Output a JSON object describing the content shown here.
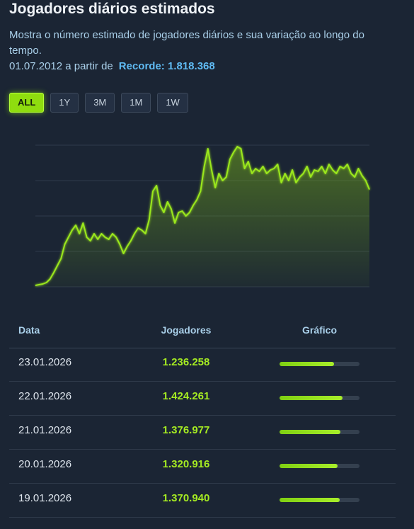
{
  "header": {
    "title": "Jogadores diários estimados",
    "description": "Mostra o número estimado de jogadores diários e sua variação ao longo do tempo.",
    "since_text": "01.07.2012 a partir de",
    "record_label": "Recorde:",
    "record_value": 1818368,
    "record_value_label": "1.818.368"
  },
  "range_buttons": [
    "ALL",
    "1Y",
    "3M",
    "1M",
    "1W"
  ],
  "active_button": 0,
  "chart_data": {
    "type": "line",
    "color": "#9be81e",
    "ylim": [
      0,
      1800000
    ],
    "yticks": [
      0,
      450000,
      900000,
      1350000,
      1800000
    ],
    "grid": true,
    "values": [
      18000,
      27000,
      36000,
      54000,
      99000,
      180000,
      270000,
      360000,
      540000,
      630000,
      720000,
      783000,
      675000,
      810000,
      630000,
      585000,
      675000,
      603000,
      675000,
      630000,
      603000,
      675000,
      630000,
      540000,
      423000,
      513000,
      585000,
      675000,
      747000,
      720000,
      675000,
      855000,
      1215000,
      1287000,
      1035000,
      945000,
      1080000,
      990000,
      810000,
      945000,
      963000,
      900000,
      945000,
      1035000,
      1107000,
      1215000,
      1530000,
      1755000,
      1485000,
      1260000,
      1440000,
      1350000,
      1395000,
      1620000,
      1710000,
      1782000,
      1755000,
      1503000,
      1593000,
      1440000,
      1503000,
      1467000,
      1530000,
      1440000,
      1485000,
      1503000,
      1557000,
      1323000,
      1440000,
      1350000,
      1485000,
      1323000,
      1395000,
      1440000,
      1530000,
      1395000,
      1485000,
      1467000,
      1530000,
      1440000,
      1557000,
      1485000,
      1440000,
      1530000,
      1503000,
      1557000,
      1440000,
      1395000,
      1503000,
      1413000,
      1350000,
      1236258
    ]
  },
  "table": {
    "headers": [
      "Data",
      "Jogadores",
      "Gráfico"
    ],
    "rows": [
      {
        "date": "23.01.2026",
        "players": 1236258,
        "players_label": "1.236.258"
      },
      {
        "date": "22.01.2026",
        "players": 1424261,
        "players_label": "1.424.261"
      },
      {
        "date": "21.01.2026",
        "players": 1376977,
        "players_label": "1.376.977"
      },
      {
        "date": "20.01.2026",
        "players": 1320916,
        "players_label": "1.320.916"
      },
      {
        "date": "19.01.2026",
        "players": 1370940,
        "players_label": "1.370.940"
      }
    ]
  }
}
